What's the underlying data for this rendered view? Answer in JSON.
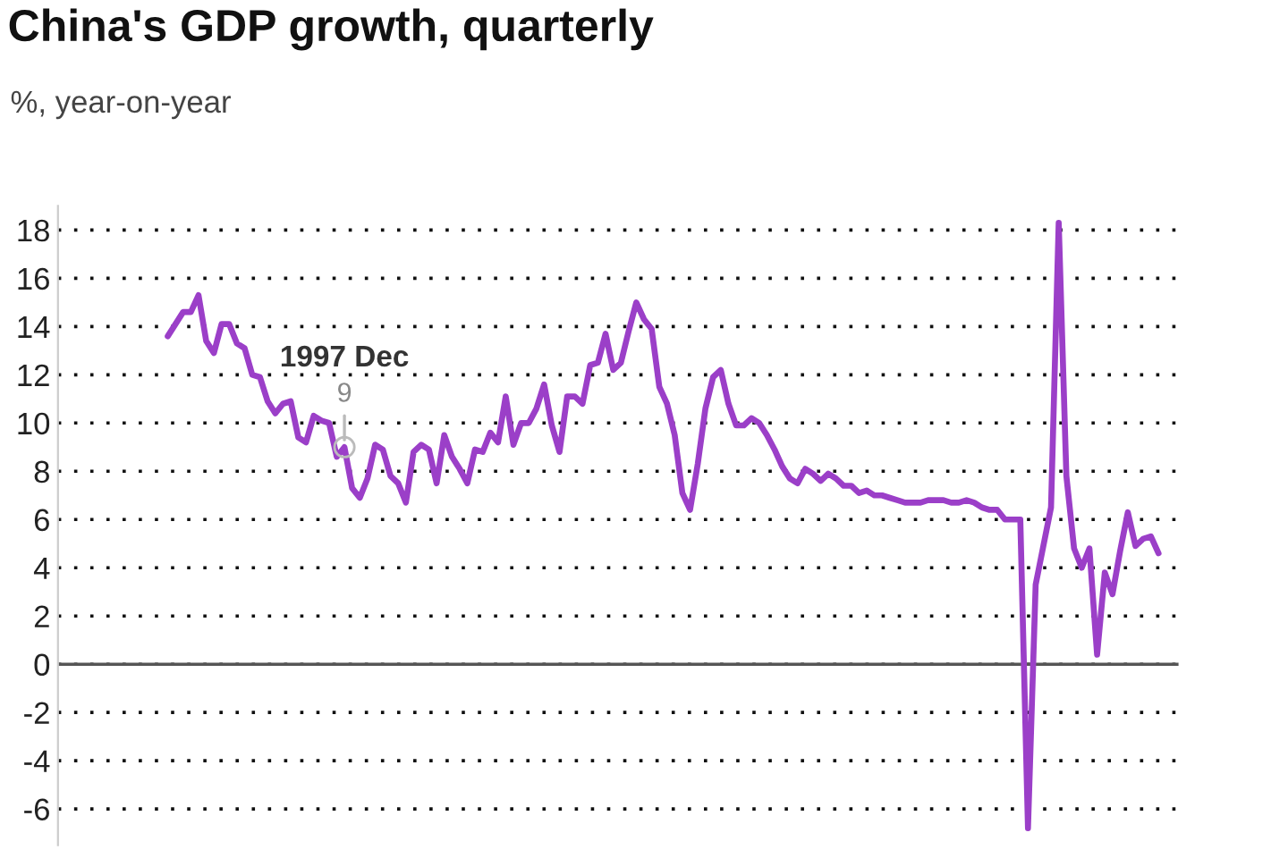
{
  "chart_data": {
    "type": "line",
    "title": "China's GDP growth, quarterly",
    "subtitle": "%, year-on-year",
    "categories": [
      null,
      null,
      null,
      null,
      null,
      null,
      null,
      null,
      null,
      null,
      null,
      null,
      null,
      null,
      null,
      null,
      null,
      null,
      null,
      null,
      null,
      null,
      null,
      null,
      null,
      null,
      null,
      null,
      null,
      null,
      null,
      null,
      null,
      null,
      null,
      null,
      null,
      null,
      null,
      null,
      null,
      null,
      null,
      null,
      null,
      null,
      null,
      null,
      null,
      null,
      null,
      null,
      null,
      null,
      null,
      null,
      null,
      null,
      null,
      null,
      null,
      null,
      null,
      null,
      null,
      null,
      null,
      null,
      null,
      null,
      null,
      null,
      null,
      null,
      null,
      null,
      null,
      null,
      null,
      null,
      null,
      null,
      null,
      null,
      null,
      null,
      null,
      null,
      null,
      null,
      null,
      null,
      null,
      null,
      null,
      null,
      null,
      null,
      null,
      null,
      null,
      null,
      null,
      null,
      null,
      null,
      null,
      null,
      null,
      null,
      null,
      null,
      null,
      null,
      null,
      null,
      null,
      null,
      null,
      null,
      null,
      null,
      null,
      null,
      null,
      null,
      null,
      null,
      null,
      null
    ],
    "series": [
      {
        "color": "#9b3fc8",
        "values": [
          13.6,
          14.1,
          14.6,
          14.6,
          15.3,
          13.4,
          12.9,
          14.1,
          14.1,
          13.3,
          13.1,
          12.0,
          11.9,
          10.9,
          10.4,
          10.8,
          10.9,
          9.4,
          9.2,
          10.3,
          10.1,
          10.0,
          8.6,
          9,
          7.3,
          6.9,
          7.7,
          9.1,
          8.9,
          7.8,
          7.5,
          6.7,
          8.8,
          9.1,
          8.9,
          7.5,
          9.5,
          8.6,
          8.1,
          7.5,
          8.9,
          8.8,
          9.6,
          9.2,
          11.1,
          9.1,
          10.0,
          10.0,
          10.6,
          11.6,
          9.9,
          8.8,
          11.1,
          11.1,
          10.8,
          12.4,
          12.5,
          13.7,
          12.2,
          12.5,
          13.8,
          15.0,
          14.3,
          13.9,
          11.5,
          10.8,
          9.5,
          7.1,
          6.4,
          8.3,
          10.6,
          11.9,
          12.2,
          10.8,
          9.9,
          9.9,
          10.2,
          10.0,
          9.5,
          8.9,
          8.2,
          7.7,
          7.5,
          8.1,
          7.9,
          7.6,
          7.9,
          7.7,
          7.4,
          7.4,
          7.1,
          7.2,
          7.0,
          7.0,
          6.9,
          6.8,
          6.7,
          6.7,
          6.7,
          6.8,
          6.8,
          6.8,
          6.7,
          6.7,
          6.8,
          6.7,
          6.5,
          6.4,
          6.4,
          6.0,
          6.0,
          6.0,
          -6.8,
          3.3,
          4.9,
          6.5,
          18.3,
          7.8,
          4.8,
          4.0,
          4.8,
          0.4,
          3.8,
          2.9,
          4.7,
          6.3,
          4.9,
          5.2,
          5.3,
          4.6
        ]
      }
    ],
    "ylim": [
      -7.5,
      19
    ],
    "yticks": [
      -6,
      -4,
      -2,
      0,
      2,
      4,
      6,
      8,
      10,
      12,
      14,
      16,
      18
    ],
    "grid": "y",
    "ref_lines": [
      {
        "axis": "y",
        "value": 0,
        "color": "#555555",
        "line_style": "solid"
      }
    ],
    "annotations": [
      {
        "text": "1997 Dec",
        "y": 9
      },
      {
        "text": "9",
        "y": 9
      }
    ],
    "line_style": "solid",
    "marker": "none"
  }
}
